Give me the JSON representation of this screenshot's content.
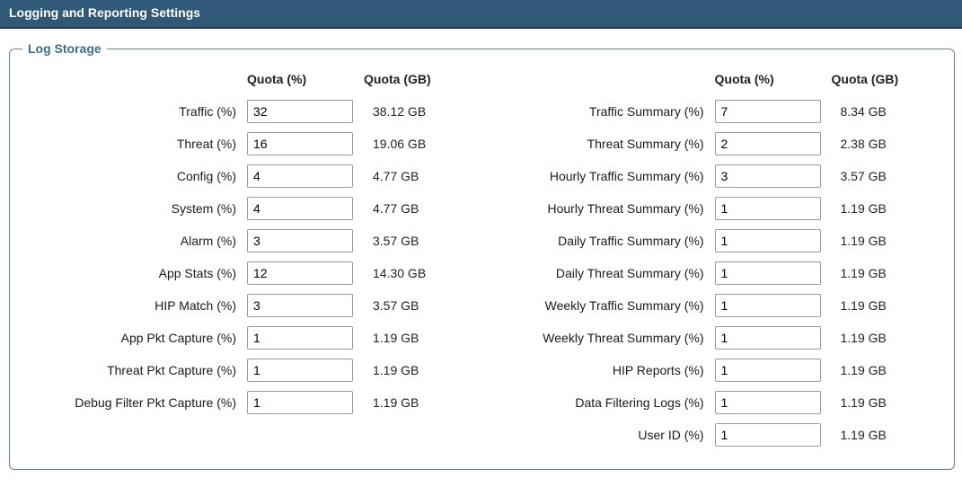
{
  "header": {
    "title": "Logging and Reporting Settings"
  },
  "group": {
    "legend": "Log Storage",
    "columnHeaders": {
      "label": "",
      "quotaPct": "Quota (%)",
      "quotaGb": "Quota (GB)"
    },
    "leftRows": [
      {
        "label": "Traffic (%)",
        "value": "32",
        "gb": "38.12 GB"
      },
      {
        "label": "Threat (%)",
        "value": "16",
        "gb": "19.06 GB"
      },
      {
        "label": "Config (%)",
        "value": "4",
        "gb": "4.77 GB"
      },
      {
        "label": "System (%)",
        "value": "4",
        "gb": "4.77 GB"
      },
      {
        "label": "Alarm (%)",
        "value": "3",
        "gb": "3.57 GB"
      },
      {
        "label": "App Stats (%)",
        "value": "12",
        "gb": "14.30 GB"
      },
      {
        "label": "HIP Match (%)",
        "value": "3",
        "gb": "3.57 GB"
      },
      {
        "label": "App Pkt Capture (%)",
        "value": "1",
        "gb": "1.19 GB"
      },
      {
        "label": "Threat Pkt Capture (%)",
        "value": "1",
        "gb": "1.19 GB"
      },
      {
        "label": "Debug Filter Pkt Capture (%)",
        "value": "1",
        "gb": "1.19 GB"
      }
    ],
    "rightRows": [
      {
        "label": "Traffic Summary (%)",
        "value": "7",
        "gb": "8.34 GB"
      },
      {
        "label": "Threat Summary (%)",
        "value": "2",
        "gb": "2.38 GB"
      },
      {
        "label": "Hourly Traffic Summary (%)",
        "value": "3",
        "gb": "3.57 GB"
      },
      {
        "label": "Hourly Threat Summary (%)",
        "value": "1",
        "gb": "1.19 GB"
      },
      {
        "label": "Daily Traffic Summary (%)",
        "value": "1",
        "gb": "1.19 GB"
      },
      {
        "label": "Daily Threat Summary (%)",
        "value": "1",
        "gb": "1.19 GB"
      },
      {
        "label": "Weekly Traffic Summary (%)",
        "value": "1",
        "gb": "1.19 GB"
      },
      {
        "label": "Weekly Threat Summary (%)",
        "value": "1",
        "gb": "1.19 GB"
      },
      {
        "label": "HIP Reports (%)",
        "value": "1",
        "gb": "1.19 GB"
      },
      {
        "label": "Data Filtering Logs (%)",
        "value": "1",
        "gb": "1.19 GB"
      },
      {
        "label": "User ID (%)",
        "value": "1",
        "gb": "1.19 GB"
      }
    ]
  }
}
